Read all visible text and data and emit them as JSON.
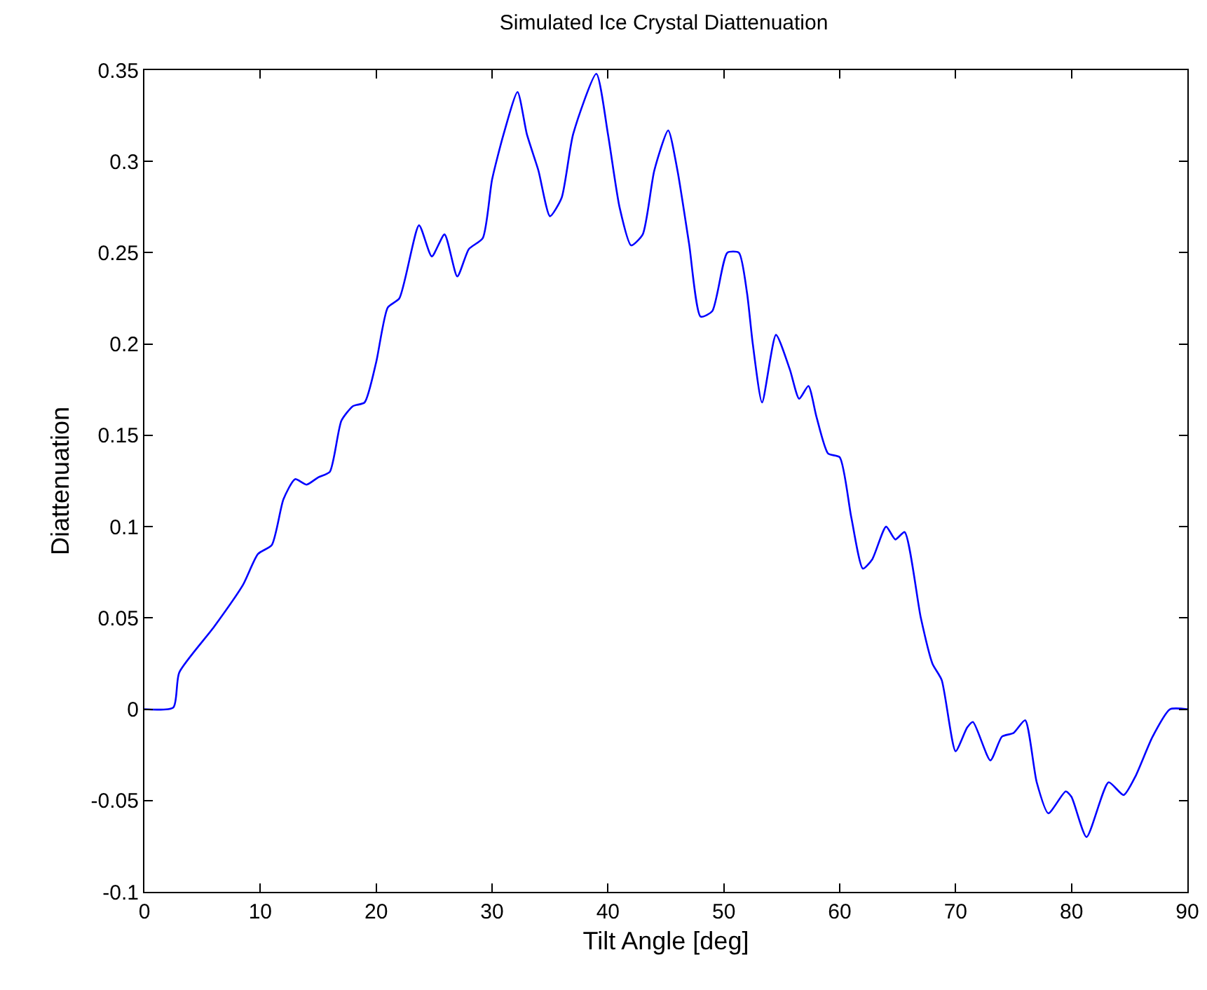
{
  "chart_data": {
    "type": "line",
    "title": "Simulated Ice Crystal Diattenuation",
    "xlabel": "Tilt Angle [deg]",
    "ylabel": "Diattenuation",
    "x": [
      0,
      2.5,
      3,
      6,
      8.5,
      9.8,
      11,
      12,
      13,
      14,
      15,
      16,
      17,
      18,
      19,
      20,
      21,
      22,
      23.7,
      24.8,
      25.9,
      27,
      28,
      29.2,
      30,
      31,
      32.2,
      33,
      34,
      35,
      36,
      37,
      39,
      40,
      41,
      42,
      43,
      44,
      45.2,
      46,
      47,
      48,
      49,
      50.3,
      51.3,
      52,
      52.5,
      53.3,
      54.5,
      55.7,
      56.5,
      57.3,
      58,
      59,
      60,
      61,
      62,
      62.8,
      64,
      64.8,
      65.6,
      67,
      68,
      68.8,
      70,
      71,
      71.5,
      73,
      74,
      75,
      76,
      77,
      78,
      79.5,
      80,
      81.3,
      83.2,
      84.5,
      85.5,
      87,
      88.5,
      90
    ],
    "series": [
      {
        "color": "#0000ff",
        "values": [
          0,
          0.001,
          0.02,
          0.045,
          0.068,
          0.085,
          0.09,
          0.115,
          0.126,
          0.123,
          0.127,
          0.13,
          0.158,
          0.166,
          0.168,
          0.19,
          0.22,
          0.225,
          0.265,
          0.248,
          0.26,
          0.237,
          0.252,
          0.258,
          0.29,
          0.315,
          0.338,
          0.315,
          0.295,
          0.27,
          0.28,
          0.315,
          0.348,
          0.315,
          0.275,
          0.254,
          0.26,
          0.295,
          0.317,
          0.295,
          0.255,
          0.215,
          0.218,
          0.25,
          0.25,
          0.228,
          0.2,
          0.168,
          0.205,
          0.186,
          0.17,
          0.177,
          0.16,
          0.14,
          0.138,
          0.105,
          0.077,
          0.082,
          0.1,
          0.093,
          0.097,
          0.05,
          0.025,
          0.016,
          -0.023,
          -0.01,
          -0.007,
          -0.028,
          -0.015,
          -0.013,
          -0.006,
          -0.04,
          -0.057,
          -0.045,
          -0.048,
          -0.07,
          -0.04,
          -0.047,
          -0.037,
          -0.015,
          0,
          0
        ]
      }
    ],
    "xlim": [
      0,
      90
    ],
    "xticks": [
      0,
      10,
      20,
      30,
      40,
      50,
      60,
      70,
      80,
      90
    ],
    "ylim": [
      -0.1,
      0.35
    ],
    "yticks": [
      -0.1,
      -0.05,
      0,
      0.05,
      0.1,
      0.15,
      0.2,
      0.25,
      0.3,
      0.35
    ],
    "grid": false,
    "marker": "none",
    "line_style": "solid"
  }
}
